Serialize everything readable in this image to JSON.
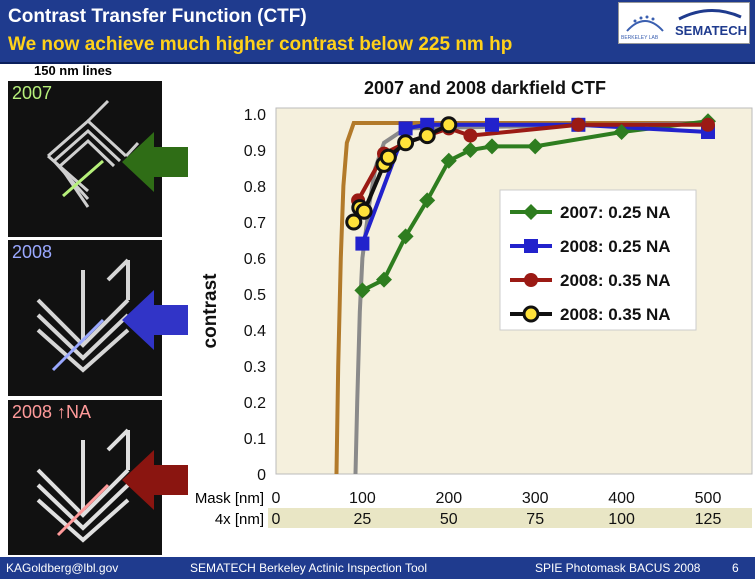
{
  "header": {
    "title": "Contrast Transfer Function (CTF)",
    "subtitle": "We now achieve much higher contrast below 225 nm hp",
    "logo_brand": "SEMATECH",
    "logo_partner": "BERKELEY LAB"
  },
  "lines_label": "150 nm lines",
  "sem_images": [
    {
      "label": "2007",
      "color": "#b6f07a"
    },
    {
      "label": "2008",
      "color": "#9aa8ff"
    },
    {
      "label": "2008 ↑NA",
      "color": "#ff9a9a"
    }
  ],
  "chart_data": {
    "type": "line",
    "title": "2007 and 2008 darkfield CTF",
    "ylabel": "contrast",
    "xlabel_mask": "Mask [nm]",
    "xlabel_4x": "4x [nm]",
    "x_ticks_mask": [
      "0",
      "100",
      "200",
      "300",
      "400",
      "500"
    ],
    "x_ticks_4x": [
      "0",
      "25",
      "50",
      "75",
      "100",
      "125"
    ],
    "y_ticks": [
      "0",
      "0.1",
      "0.2",
      "0.3",
      "0.4",
      "0.5",
      "0.6",
      "0.7",
      "0.8",
      "0.9",
      "1.0"
    ],
    "xlim": [
      0,
      500
    ],
    "ylim": [
      0,
      1.0
    ],
    "series": [
      {
        "name": "2007: 0.25 NA",
        "color": "#2e7d1f",
        "marker": "diamond",
        "x": [
          100,
          125,
          150,
          175,
          200,
          225,
          250,
          300,
          400,
          500
        ],
        "y": [
          0.51,
          0.54,
          0.66,
          0.76,
          0.87,
          0.9,
          0.91,
          0.91,
          0.95,
          0.98
        ]
      },
      {
        "name": "2008: 0.25 NA",
        "color": "#2222cc",
        "marker": "square",
        "x": [
          100,
          150,
          175,
          250,
          350,
          500
        ],
        "y": [
          0.64,
          0.96,
          0.97,
          0.97,
          0.97,
          0.95
        ]
      },
      {
        "name": "2008: 0.35 NA",
        "color": "#9b1a14",
        "marker": "circle",
        "x": [
          95,
          125,
          150,
          200,
          225,
          350,
          500
        ],
        "y": [
          0.76,
          0.89,
          0.92,
          0.96,
          0.94,
          0.97,
          0.97
        ]
      },
      {
        "name": "2008: 0.35 NA",
        "color": "#ffe23a",
        "marker": "circle-open",
        "x": [
          90,
          97,
          102,
          125,
          130,
          150,
          175,
          200
        ],
        "y": [
          0.7,
          0.74,
          0.73,
          0.86,
          0.88,
          0.92,
          0.94,
          0.97
        ]
      }
    ],
    "theory_curves": [
      {
        "color": "#b27a2a",
        "x": [
          70,
          72,
          75,
          78,
          82,
          90,
          500
        ],
        "y": [
          0.0,
          0.3,
          0.6,
          0.8,
          0.92,
          0.975,
          0.975
        ]
      },
      {
        "color": "#8a8a8a",
        "x": [
          92,
          94,
          97,
          100,
          108,
          115,
          125,
          150,
          500
        ],
        "y": [
          0.0,
          0.2,
          0.45,
          0.6,
          0.75,
          0.85,
          0.92,
          0.96,
          0.975
        ]
      }
    ],
    "legend_position": "right",
    "grid": false
  },
  "footer": {
    "author": "KAGoldberg@lbl.gov",
    "center": "SEMATECH Berkeley Actinic Inspection Tool",
    "conference": "SPIE Photomask BACUS 2008",
    "page": "6"
  }
}
